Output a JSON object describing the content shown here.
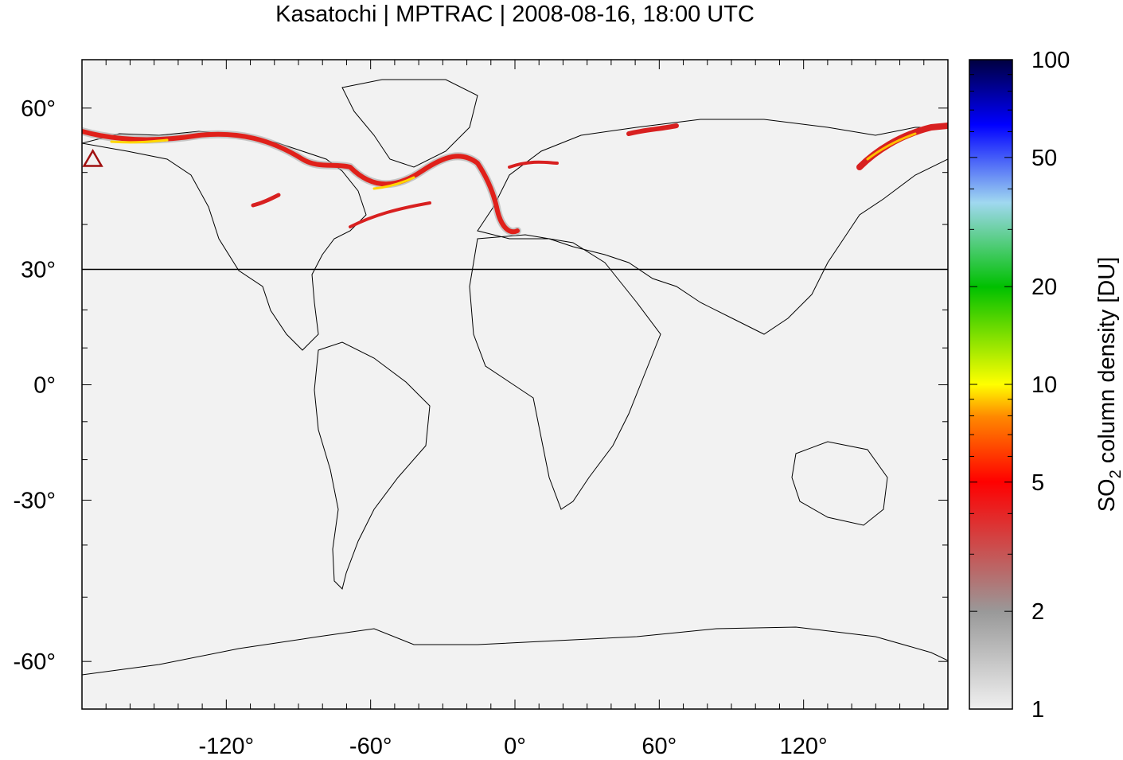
{
  "title": "Kasatochi | MPTRAC | 2008-08-16, 18:00 UTC",
  "map": {
    "x_ticks": [
      {
        "value": -120,
        "label": "-120°"
      },
      {
        "value": -60,
        "label": "-60°"
      },
      {
        "value": 0,
        "label": "0°"
      },
      {
        "value": 60,
        "label": "60°"
      },
      {
        "value": 120,
        "label": "120°"
      }
    ],
    "y_ticks": [
      {
        "value": 60,
        "label": "60°"
      },
      {
        "value": 30,
        "label": "30°"
      },
      {
        "value": 0,
        "label": "0°"
      },
      {
        "value": -30,
        "label": "-30°"
      },
      {
        "value": -60,
        "label": "-60°"
      }
    ],
    "lon_range": [
      -180,
      180
    ],
    "lat_range": [
      -90,
      90
    ],
    "y_scale": "mercator",
    "reference_latitude": 30,
    "background_color": "#f2f2f2",
    "volcano_marker": {
      "lon": -175.5,
      "lat": 52.2,
      "symbol": "triangle",
      "color": "#a01010"
    }
  },
  "colorbar": {
    "label_prefix": "SO",
    "label_subscript": "2",
    "label_suffix": " column density [DU]",
    "scale": "log",
    "range": [
      1,
      100
    ],
    "ticks": [
      {
        "value": 1,
        "label": "1"
      },
      {
        "value": 2,
        "label": "2"
      },
      {
        "value": 5,
        "label": "5"
      },
      {
        "value": 10,
        "label": "10"
      },
      {
        "value": 20,
        "label": "20"
      },
      {
        "value": 50,
        "label": "50"
      },
      {
        "value": 100,
        "label": "100"
      }
    ],
    "colors": [
      "#f0f0f0",
      "#999999",
      "#ff0000",
      "#ff8800",
      "#ffff00",
      "#00c000",
      "#a0d8f0",
      "#0000ff",
      "#000040"
    ]
  }
}
